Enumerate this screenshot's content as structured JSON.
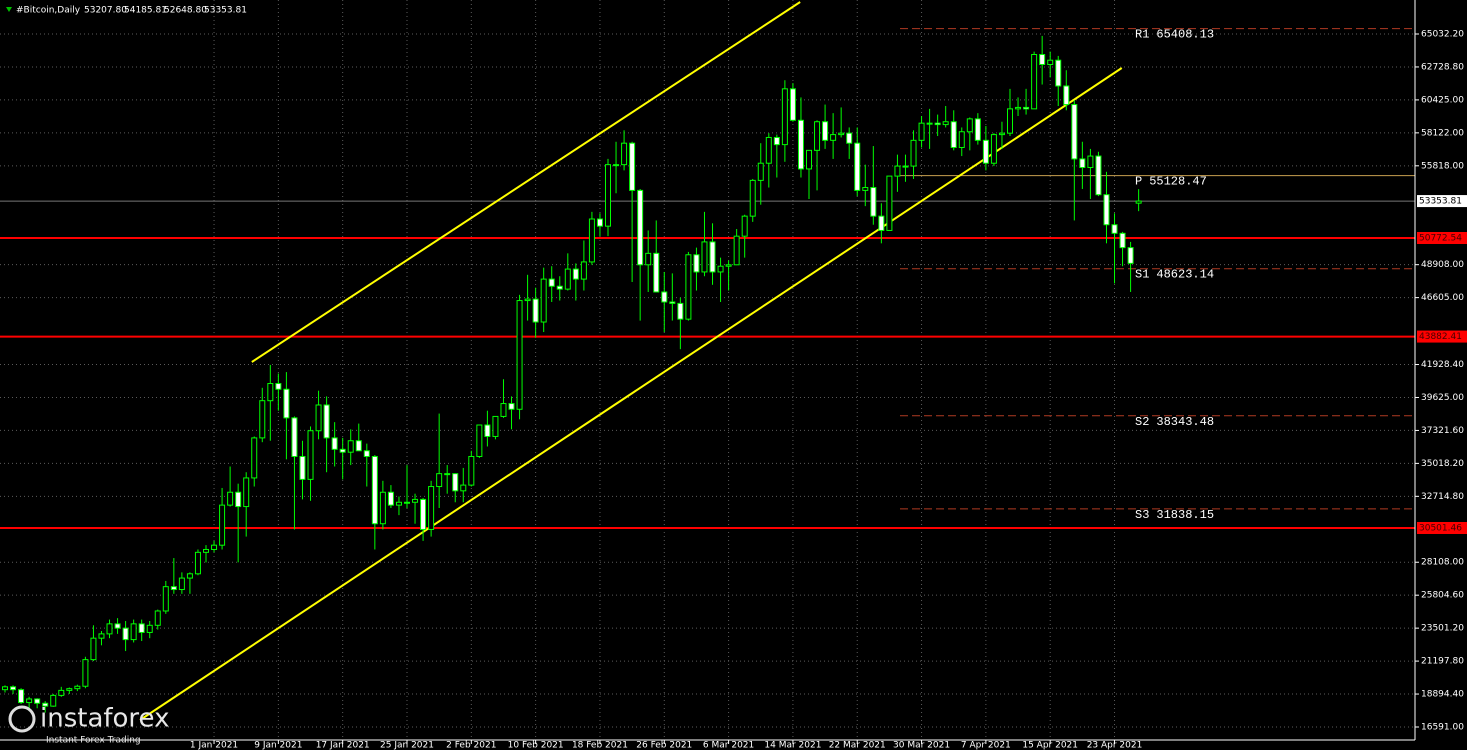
{
  "chart_data": {
    "type": "candlestick",
    "header": {
      "symbol": "#Bitcoin,Daily",
      "values": [
        "53207.80",
        "54185.81",
        "52648.80",
        "53353.81"
      ]
    },
    "logo": {
      "brand": "instaforex",
      "tagline": "Instant Forex Trading"
    },
    "up_color": "#00ff00",
    "down_fill": "#ffffff",
    "up_fill": "#000000",
    "ylim": [
      15682,
      67409
    ],
    "yticks": [
      {
        "value": 16591,
        "label": "16591.00"
      },
      {
        "value": 18894.4,
        "label": "18894.40"
      },
      {
        "value": 21197.8,
        "label": "21197.80"
      },
      {
        "value": 23501.2,
        "label": "23501.20"
      },
      {
        "value": 25804.6,
        "label": "25804.60"
      },
      {
        "value": 28108,
        "label": "28108.00"
      },
      {
        "value": 32714.8,
        "label": "32714.80"
      },
      {
        "value": 35018.2,
        "label": "35018.20"
      },
      {
        "value": 37321.6,
        "label": "37321.60"
      },
      {
        "value": 39625,
        "label": "39625.00"
      },
      {
        "value": 41928.4,
        "label": "41928.40"
      },
      {
        "value": 46605,
        "label": "46605.00"
      },
      {
        "value": 48908,
        "label": "48908.00"
      },
      {
        "value": 55818,
        "label": "55818.00"
      },
      {
        "value": 58122,
        "label": "58122.00"
      },
      {
        "value": 60425,
        "label": "60425.00"
      },
      {
        "value": 62728.8,
        "label": "62728.80"
      },
      {
        "value": 65032.2,
        "label": "65032.20"
      }
    ],
    "grid": true,
    "categories": [
      null,
      null,
      null,
      null,
      null,
      null,
      null,
      null,
      null,
      null,
      null,
      null,
      null,
      null,
      null,
      null,
      null,
      null,
      null,
      null,
      null,
      null,
      null,
      null,
      null,
      null,
      "1 Jan 2021",
      null,
      null,
      null,
      null,
      null,
      null,
      null,
      "9 Jan 2021",
      null,
      null,
      null,
      null,
      null,
      null,
      null,
      "17 Jan 2021",
      null,
      null,
      null,
      null,
      null,
      null,
      null,
      "25 Jan 2021",
      null,
      null,
      null,
      null,
      null,
      null,
      null,
      "2 Feb 2021",
      null,
      null,
      null,
      null,
      null,
      null,
      null,
      "10 Feb 2021",
      null,
      null,
      null,
      null,
      null,
      null,
      null,
      "18 Feb 2021",
      null,
      null,
      null,
      null,
      null,
      null,
      null,
      "26 Feb 2021",
      null,
      null,
      null,
      null,
      null,
      null,
      null,
      "6 Mar 2021",
      null,
      null,
      null,
      null,
      null,
      null,
      null,
      "14 Mar 2021",
      null,
      null,
      null,
      null,
      null,
      null,
      null,
      "22 Mar 2021",
      null,
      null,
      null,
      null,
      null,
      null,
      null,
      "30 Mar 2021",
      null,
      null,
      null,
      null,
      null,
      null,
      null,
      "7 Apr 2021",
      null,
      null,
      null,
      null,
      null,
      null,
      null,
      "15 Apr 2021",
      null,
      null,
      null,
      null,
      null,
      null,
      null,
      "23 Apr 2021",
      null,
      null,
      null
    ],
    "ohlc": [
      [
        19200,
        19500,
        19000,
        19400
      ],
      [
        19400,
        19500,
        18900,
        19200
      ],
      [
        19200,
        19300,
        18200,
        18300
      ],
      [
        18300,
        18700,
        17700,
        18550
      ],
      [
        18550,
        18600,
        17900,
        18250
      ],
      [
        18250,
        18400,
        17600,
        18050
      ],
      [
        18050,
        18900,
        18000,
        18800
      ],
      [
        18800,
        19400,
        18700,
        19150
      ],
      [
        19150,
        19350,
        18900,
        19270
      ],
      [
        19270,
        19550,
        19100,
        19440
      ],
      [
        19440,
        21500,
        19300,
        21300
      ],
      [
        21300,
        23700,
        21200,
        22800
      ],
      [
        22800,
        23300,
        22300,
        23100
      ],
      [
        23100,
        24100,
        22800,
        23800
      ],
      [
        23800,
        24200,
        23100,
        23500
      ],
      [
        23500,
        24000,
        21900,
        22700
      ],
      [
        22700,
        24100,
        22500,
        23800
      ],
      [
        23800,
        24100,
        22600,
        23200
      ],
      [
        23200,
        24000,
        22800,
        23700
      ],
      [
        23700,
        24800,
        23400,
        24700
      ],
      [
        24700,
        26800,
        24500,
        26400
      ],
      [
        26400,
        28400,
        25900,
        26200
      ],
      [
        26200,
        27400,
        25900,
        27000
      ],
      [
        27000,
        27400,
        25900,
        27300
      ],
      [
        27300,
        29000,
        27200,
        28800
      ],
      [
        28800,
        29300,
        28100,
        29000
      ],
      [
        29000,
        29600,
        28800,
        29300
      ],
      [
        29300,
        33300,
        29000,
        32100
      ],
      [
        32100,
        34800,
        32000,
        33000
      ],
      [
        33000,
        33600,
        28100,
        32000
      ],
      [
        32000,
        34400,
        29900,
        34000
      ],
      [
        34000,
        36900,
        33400,
        36800
      ],
      [
        36800,
        40300,
        36500,
        39400
      ],
      [
        39400,
        41900,
        36600,
        40600
      ],
      [
        40600,
        41300,
        38700,
        40200
      ],
      [
        40200,
        41400,
        35300,
        38200
      ],
      [
        38200,
        38300,
        30400,
        35500
      ],
      [
        35500,
        36600,
        32500,
        33900
      ],
      [
        33900,
        37600,
        32400,
        37300
      ],
      [
        37300,
        40100,
        36700,
        39100
      ],
      [
        39100,
        39700,
        34400,
        36800
      ],
      [
        36800,
        37900,
        34800,
        36000
      ],
      [
        36000,
        36800,
        33900,
        35800
      ],
      [
        35800,
        37400,
        34900,
        36600
      ],
      [
        36600,
        37800,
        35900,
        35900
      ],
      [
        35900,
        36400,
        33400,
        35500
      ],
      [
        35500,
        35600,
        29000,
        30800
      ],
      [
        30800,
        33800,
        30400,
        33000
      ],
      [
        33000,
        33500,
        31900,
        32100
      ],
      [
        32100,
        32700,
        31400,
        32300
      ],
      [
        32300,
        34900,
        31900,
        32300
      ],
      [
        32300,
        32900,
        30800,
        32500
      ],
      [
        32500,
        32600,
        29600,
        30400
      ],
      [
        30400,
        33800,
        29900,
        33400
      ],
      [
        33400,
        38500,
        31900,
        34300
      ],
      [
        34300,
        34900,
        32900,
        34300
      ],
      [
        34300,
        34300,
        32300,
        33100
      ],
      [
        33100,
        34700,
        32300,
        33500
      ],
      [
        33500,
        35900,
        33400,
        35500
      ],
      [
        35500,
        37700,
        35400,
        37700
      ],
      [
        37700,
        38700,
        36200,
        36900
      ],
      [
        36900,
        38300,
        36700,
        38300
      ],
      [
        38300,
        40900,
        38200,
        39200
      ],
      [
        39200,
        39700,
        37400,
        38800
      ],
      [
        38800,
        46800,
        38100,
        46400
      ],
      [
        46400,
        48200,
        45000,
        46500
      ],
      [
        46500,
        47300,
        43800,
        44900
      ],
      [
        44900,
        48700,
        44200,
        47900
      ],
      [
        47900,
        48800,
        46300,
        47400
      ],
      [
        47400,
        48100,
        46400,
        47200
      ],
      [
        47200,
        49700,
        47100,
        48600
      ],
      [
        48600,
        49000,
        46400,
        47900
      ],
      [
        47900,
        50600,
        47100,
        49100
      ],
      [
        49100,
        52600,
        48900,
        52100
      ],
      [
        52100,
        52500,
        50900,
        51600
      ],
      [
        51600,
        56300,
        50900,
        55900
      ],
      [
        55900,
        57500,
        53900,
        55900
      ],
      [
        55900,
        58300,
        55500,
        57400
      ],
      [
        57400,
        57500,
        47700,
        54100
      ],
      [
        54100,
        54200,
        45000,
        48900
      ],
      [
        48900,
        51300,
        47000,
        49700
      ],
      [
        49700,
        52000,
        47000,
        47000
      ],
      [
        47000,
        48400,
        44200,
        46300
      ],
      [
        46300,
        48300,
        45000,
        46200
      ],
      [
        46200,
        46600,
        43000,
        45100
      ],
      [
        45100,
        49800,
        45000,
        49600
      ],
      [
        49600,
        50100,
        47100,
        48400
      ],
      [
        48400,
        52600,
        48100,
        50500
      ],
      [
        50500,
        51800,
        47500,
        48400
      ],
      [
        48400,
        49400,
        46300,
        48800
      ],
      [
        48800,
        49200,
        47100,
        48900
      ],
      [
        48900,
        51400,
        48900,
        50900
      ],
      [
        50900,
        52400,
        49400,
        52300
      ],
      [
        52300,
        54900,
        51900,
        54800
      ],
      [
        54800,
        57400,
        53100,
        56000
      ],
      [
        56000,
        58100,
        54300,
        57800
      ],
      [
        57800,
        58000,
        55000,
        57300
      ],
      [
        57300,
        61800,
        56100,
        61200
      ],
      [
        61200,
        61600,
        58900,
        59000
      ],
      [
        59000,
        60600,
        55000,
        55600
      ],
      [
        55600,
        56900,
        53500,
        56900
      ],
      [
        56900,
        59000,
        54100,
        58900
      ],
      [
        58900,
        60100,
        57000,
        57600
      ],
      [
        57600,
        59500,
        56300,
        58000
      ],
      [
        58000,
        59900,
        57800,
        58100
      ],
      [
        58100,
        58500,
        56300,
        57400
      ],
      [
        57400,
        58500,
        53700,
        54100
      ],
      [
        54100,
        55900,
        53000,
        54300
      ],
      [
        54300,
        57200,
        51700,
        52300
      ],
      [
        52300,
        53200,
        50400,
        51300
      ],
      [
        51300,
        55100,
        51300,
        55100
      ],
      [
        55100,
        56600,
        54000,
        55800
      ],
      [
        55800,
        56600,
        54700,
        55800
      ],
      [
        55800,
        58300,
        54900,
        57600
      ],
      [
        57600,
        59300,
        57100,
        58800
      ],
      [
        58800,
        59800,
        57000,
        58800
      ],
      [
        58800,
        59400,
        57900,
        58700
      ],
      [
        58700,
        60000,
        58500,
        58900
      ],
      [
        58900,
        59700,
        56900,
        57100
      ],
      [
        57100,
        58500,
        56500,
        58200
      ],
      [
        58200,
        59200,
        56900,
        59100
      ],
      [
        59100,
        59500,
        57300,
        57600
      ],
      [
        57600,
        58600,
        55500,
        56000
      ],
      [
        56000,
        58100,
        55800,
        58000
      ],
      [
        58000,
        58900,
        57000,
        58100
      ],
      [
        58100,
        61200,
        57900,
        59800
      ],
      [
        59800,
        60600,
        59300,
        59900
      ],
      [
        59900,
        61200,
        59400,
        59800
      ],
      [
        59800,
        63800,
        59800,
        63600
      ],
      [
        63600,
        64900,
        61500,
        62900
      ],
      [
        62900,
        63800,
        62000,
        63200
      ],
      [
        63200,
        63500,
        60000,
        61400
      ],
      [
        61400,
        62500,
        59700,
        60100
      ],
      [
        60100,
        60400,
        52000,
        56300
      ],
      [
        56300,
        57500,
        54200,
        55700
      ],
      [
        55700,
        57000,
        53500,
        56500
      ],
      [
        56500,
        56800,
        53700,
        53800
      ],
      [
        53800,
        55400,
        50400,
        51700
      ],
      [
        51700,
        52500,
        47600,
        51100
      ],
      [
        51100,
        51200,
        48800,
        50100
      ],
      [
        50100,
        50500,
        47000,
        49000
      ],
      [
        53207.8,
        54185.81,
        52648.8,
        53353.81
      ]
    ],
    "channel": {
      "color": "#ffff00",
      "lines": [
        {
          "x": [
            30.7,
            98.9
          ],
          "y": [
            42105,
            67269
          ]
        },
        {
          "x": [
            16.8,
            138.9
          ],
          "y": [
            17080,
            62655
          ]
        }
      ]
    },
    "pivots": {
      "color": "#b03a22",
      "levels": [
        {
          "name": "R1",
          "value": 65408.13
        },
        {
          "name": "P",
          "value": 55128.47
        },
        {
          "name": "S1",
          "value": 48623.14
        },
        {
          "name": "S2",
          "value": 38343.48
        },
        {
          "name": "S3",
          "value": 31838.15
        }
      ]
    },
    "levels": {
      "color": "#ff0000",
      "values": [
        50772.54,
        43882.41,
        30501.46
      ]
    },
    "current_price": 53353.81
  }
}
